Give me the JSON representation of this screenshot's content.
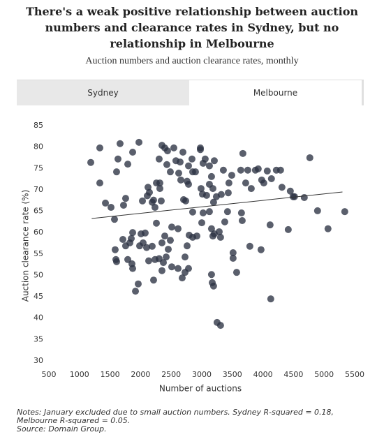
{
  "chart_data": {
    "type": "scatter",
    "title": "There's a weak positive relationship between auction numbers and clearance rates in Sydney, but no relationship in Melbourne",
    "subtitle": "Auction numbers and auction clearance rates, monthly",
    "tabs": [
      "Sydney",
      "Melbourne"
    ],
    "active_tab": "Melbourne",
    "x_label": "Number of auctions",
    "y_label": "Auction clearance rate (%)",
    "xlim": [
      500,
      5500
    ],
    "xticks": [
      500,
      1000,
      1500,
      2000,
      2500,
      3000,
      3500,
      4000,
      4500,
      5000,
      5500
    ],
    "ylim": [
      30,
      85
    ],
    "yticks": [
      30,
      35,
      40,
      45,
      50,
      55,
      60,
      65,
      70,
      75,
      80,
      85
    ],
    "color": "#2b3243",
    "x": [
      1185,
      1333,
      1333,
      1425,
      1516,
      1573,
      1607,
      1630,
      1664,
      1721,
      1755,
      1790,
      1870,
      1973,
      1584,
      1596,
      1607,
      1710,
      1755,
      1790,
      1824,
      1847,
      1858,
      1870,
      1870,
      1916,
      1961,
      1984,
      2007,
      2041,
      2075,
      2098,
      2132,
      2189,
      2212,
      2235,
      2258,
      2109,
      2121,
      2144,
      2189,
      2235,
      2258,
      2303,
      2349,
      2395,
      2440,
      2429,
      2486,
      2543,
      2577,
      2623,
      2646,
      2692,
      2657,
      2703,
      2737,
      2760,
      2783,
      2783,
      2840,
      2851,
      2897,
      2977,
      2977,
      3022,
      3056,
      3125,
      3159,
      3205,
      2988,
      3011,
      3079,
      3125,
      3182,
      3193,
      3239,
      3319,
      3353,
      3433,
      3444,
      3490,
      3638,
      3672,
      3718,
      3752,
      3809,
      3877,
      3923,
      3980,
      4014,
      4071,
      4139,
      4219,
      4288,
      4311,
      4448,
      4493,
      4516,
      4676,
      4767,
      4893,
      5064,
      5338,
      4414,
      4117,
      4128,
      3969,
      3786,
      3661,
      3649,
      3512,
      3512,
      3570,
      3421,
      3376,
      3307,
      3285,
      3205,
      3159,
      3125,
      3182,
      3159,
      3171,
      3193,
      3250,
      3307,
      3022,
      3000,
      2851,
      2794,
      2851,
      2920,
      2760,
      2726,
      2783,
      2726,
      2680,
      2612,
      2509,
      2612,
      2509,
      2452,
      2418,
      2372,
      2349,
      2349,
      2395,
      2486,
      2303,
      2337,
      2315,
      2315,
      2212,
      2030
    ],
    "y": [
      76.4,
      79.8,
      71.6,
      66.9,
      65.9,
      63.1,
      74.2,
      77.2,
      80.8,
      66.4,
      68.0,
      76.0,
      78.8,
      81.1,
      56.0,
      53.7,
      53.2,
      58.4,
      56.9,
      53.7,
      57.6,
      58.6,
      52.7,
      51.6,
      60.0,
      46.3,
      48.0,
      56.9,
      59.7,
      57.6,
      59.9,
      56.5,
      53.4,
      56.8,
      48.9,
      53.7,
      62.2,
      68.6,
      70.6,
      69.4,
      67.1,
      65.9,
      71.6,
      77.2,
      80.4,
      79.8,
      79.1,
      75.9,
      74.2,
      79.8,
      76.8,
      73.9,
      76.5,
      78.8,
      72.3,
      67.7,
      67.4,
      72.0,
      75.6,
      71.3,
      77.2,
      74.2,
      74.2,
      79.4,
      79.8,
      76.2,
      77.2,
      75.6,
      73.1,
      76.8,
      70.3,
      69.0,
      68.7,
      71.3,
      70.3,
      67.1,
      68.4,
      68.9,
      74.6,
      69.3,
      71.6,
      73.4,
      74.6,
      78.5,
      71.6,
      74.6,
      70.3,
      74.6,
      74.9,
      72.3,
      71.6,
      74.4,
      72.6,
      74.6,
      74.6,
      70.6,
      69.7,
      68.4,
      68.4,
      68.2,
      77.5,
      65.1,
      60.9,
      64.9,
      60.7,
      61.8,
      44.5,
      56.0,
      56.8,
      62.8,
      64.6,
      55.3,
      54.0,
      50.7,
      64.9,
      62.5,
      58.9,
      60.2,
      59.7,
      60.9,
      64.9,
      59.2,
      50.2,
      48.3,
      47.5,
      39.0,
      38.3,
      64.6,
      62.3,
      64.8,
      59.4,
      58.9,
      59.2,
      56.9,
      54.3,
      51.6,
      50.7,
      49.4,
      51.6,
      61.3,
      60.9,
      52.0,
      56.1,
      54.3,
      53.0,
      51.1,
      57.6,
      59.2,
      58.2,
      53.9,
      67.4,
      70.3,
      71.6,
      67.6,
      67.4
    ],
    "trendline": {
      "x": [
        1200,
        5300
      ],
      "y": [
        63.3,
        69.5
      ],
      "color": "#333333"
    },
    "notes": "Notes: January excluded due to small auction numbers. Sydney R-squared = 0.18, Melbourne R-squared = 0.05.",
    "source": "Source: Domain Group."
  }
}
